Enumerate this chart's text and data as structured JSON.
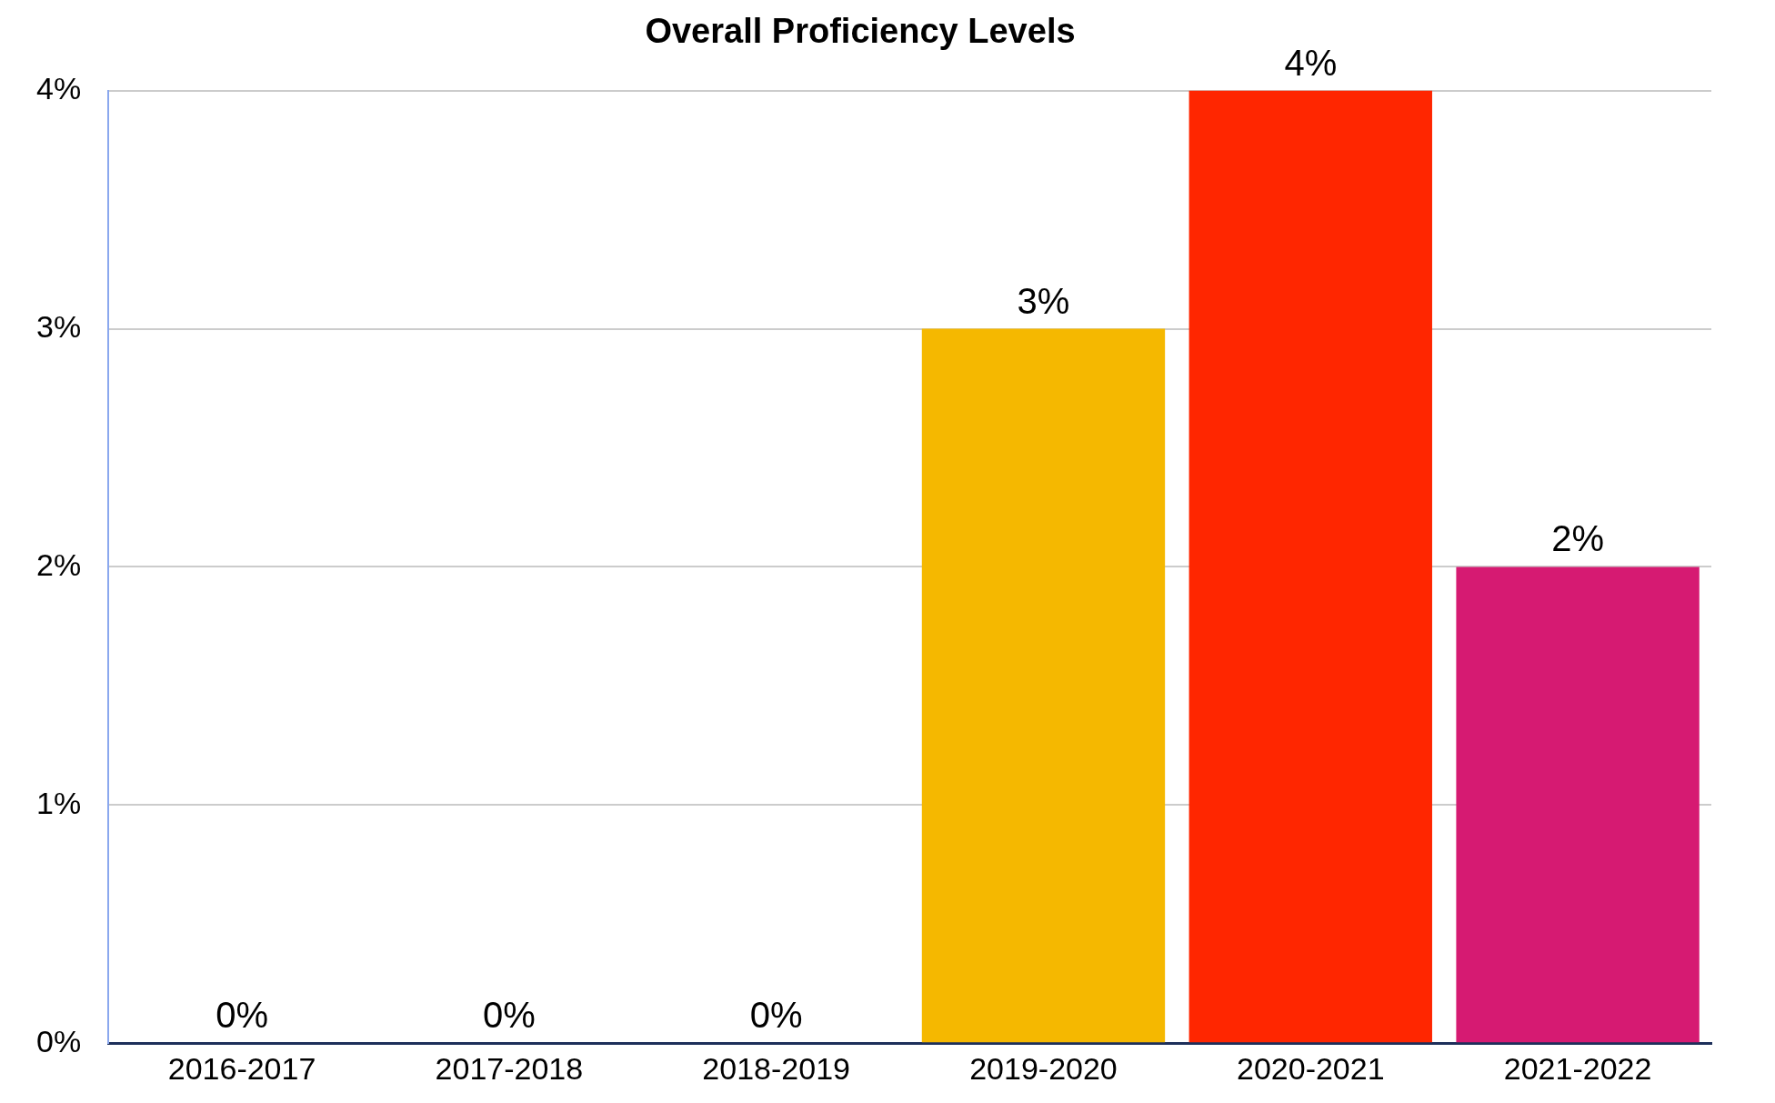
{
  "chart_data": {
    "type": "bar",
    "title": "Overall Proficiency Levels",
    "categories": [
      "2016-2017",
      "2017-2018",
      "2018-2019",
      "2019-2020",
      "2020-2021",
      "2021-2022"
    ],
    "values": [
      0,
      0,
      0,
      3,
      4,
      2
    ],
    "colors": [
      "#2f6fd6",
      "#3fa535",
      "#8e44ad",
      "#f5b800",
      "#ff2600",
      "#d61a72"
    ],
    "value_labels": [
      "0%",
      "0%",
      "0%",
      "3%",
      "4%",
      "2%"
    ],
    "ylim": [
      0,
      4
    ],
    "yticks": [
      {
        "value": 0,
        "label": "0%"
      },
      {
        "value": 1,
        "label": "1%"
      },
      {
        "value": 2,
        "label": "2%"
      },
      {
        "value": 3,
        "label": "3%"
      },
      {
        "value": 4,
        "label": "4%"
      }
    ],
    "grid": "y",
    "legend": false
  }
}
